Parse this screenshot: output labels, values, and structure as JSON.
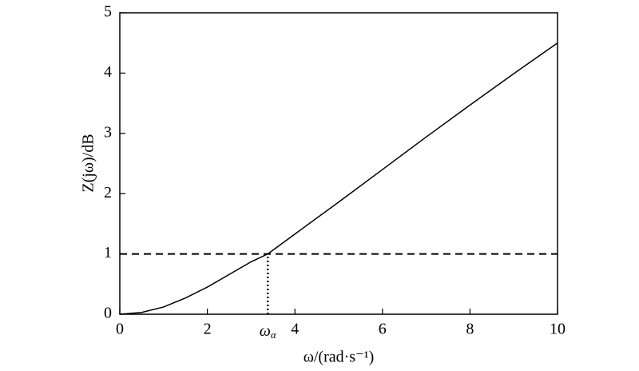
{
  "chart_data": {
    "type": "line",
    "xlabel": "ω/(rad·s⁻¹)",
    "ylabel": "Z(jω)/dB",
    "x": [
      0,
      0.5,
      1,
      1.5,
      2,
      2.5,
      3,
      3.38,
      4,
      5,
      6,
      7,
      8,
      9,
      10
    ],
    "series": [
      {
        "name": "Z(jω)",
        "color": "#000000",
        "values": [
          0,
          0.03,
          0.12,
          0.27,
          0.45,
          0.66,
          0.87,
          1.0,
          1.33,
          1.86,
          2.4,
          2.94,
          3.47,
          3.99,
          4.5
        ]
      }
    ],
    "xlim": [
      0,
      10
    ],
    "xticks": [
      0,
      2,
      4,
      6,
      8,
      10
    ],
    "ylim": [
      0,
      5
    ],
    "yticks": [
      0,
      1,
      2,
      3,
      4,
      5
    ],
    "hlines": [
      {
        "y": 1,
        "style": "dashed"
      }
    ],
    "vlines": [
      {
        "x": 3.38,
        "y_end": 1,
        "style": "dotted",
        "label": "ω",
        "label_subscript": "α"
      }
    ],
    "grid": false
  }
}
